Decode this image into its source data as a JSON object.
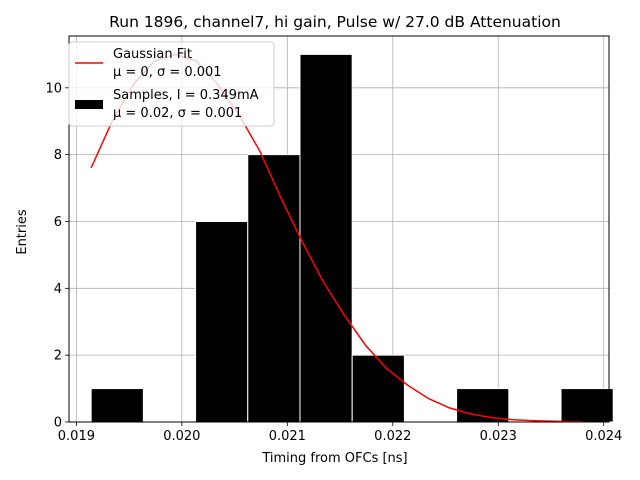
{
  "chart_data": {
    "type": "bar",
    "title": "Run 1896, channel7, hi gain, Pulse w/ 27.0 dB Attenuation",
    "xlabel": "Timing from OFCs [ns]",
    "ylabel": "Entries",
    "xlim": [
      0.01893,
      0.02405
    ],
    "ylim": [
      0,
      11.55
    ],
    "grid": true,
    "legend_position": "top-left",
    "x_ticks": [
      0.019,
      0.02,
      0.021,
      0.022,
      0.023,
      0.024
    ],
    "x_tick_labels": [
      "0.019",
      "0.020",
      "0.021",
      "0.022",
      "0.023",
      "0.024"
    ],
    "y_ticks": [
      0,
      2,
      4,
      6,
      8,
      10
    ],
    "y_tick_labels": [
      "0",
      "2",
      "4",
      "6",
      "8",
      "10"
    ],
    "histogram": {
      "name": "Samples, I = 0.349mA",
      "stats": "μ = 0.02, σ = 0.001",
      "color": "#000000",
      "edge_color": "#ffffff",
      "bin_edges": [
        0.01914,
        0.019635,
        0.02013,
        0.020625,
        0.02112,
        0.021615,
        0.02211,
        0.022605,
        0.0231,
        0.023595,
        0.02409
      ],
      "counts": [
        1,
        0,
        6,
        8,
        11,
        2,
        0,
        1,
        0,
        1
      ]
    },
    "fit": {
      "name": "Gaussian Fit",
      "stats": "μ = 0, σ = 0.001",
      "color": "#ff0000",
      "x": [
        0.01914,
        0.01934,
        0.01954,
        0.01974,
        0.01994,
        0.02014,
        0.02034,
        0.02054,
        0.02074,
        0.02094,
        0.02114,
        0.02134,
        0.02154,
        0.02174,
        0.02194,
        0.02214,
        0.02234,
        0.02254,
        0.02274,
        0.02294,
        0.02314,
        0.02334,
        0.02354,
        0.02374,
        0.0238
      ],
      "y": [
        7.6,
        9.0,
        10.1,
        10.8,
        11.0,
        10.8,
        10.1,
        9.2,
        8.1,
        6.7,
        5.4,
        4.2,
        3.2,
        2.3,
        1.6,
        1.1,
        0.7,
        0.42,
        0.24,
        0.13,
        0.07,
        0.04,
        0.02,
        0.01,
        0.01
      ]
    }
  }
}
